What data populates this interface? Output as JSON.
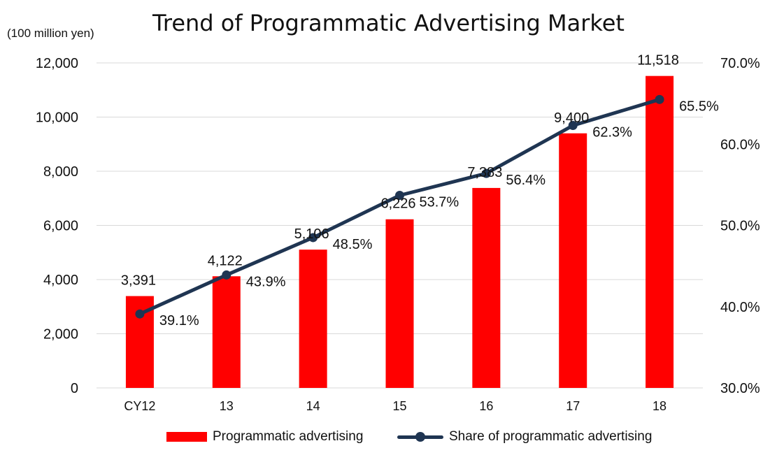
{
  "title": "Trend of Programmatic Advertising Market",
  "unit_label": "(100 million yen)",
  "colors": {
    "bar": "#ff0000",
    "line": "#1f3552",
    "grid": "#d9d9d9"
  },
  "legend": {
    "bar_label": "Programmatic advertising",
    "line_label": "Share of programmatic advertising"
  },
  "chart_data": {
    "type": "bar",
    "categories": [
      "CY12",
      "13",
      "14",
      "15",
      "16",
      "17",
      "18"
    ],
    "series": [
      {
        "name": "Programmatic advertising",
        "type": "bar",
        "axis": "left",
        "values": [
          3391,
          4122,
          5106,
          6226,
          7383,
          9400,
          11518
        ],
        "labels": [
          "3,391",
          "4,122",
          "5,106",
          "6,226",
          "7,383",
          "9,400",
          "11,518"
        ]
      },
      {
        "name": "Share of programmatic advertising",
        "type": "line",
        "axis": "right",
        "values": [
          39.1,
          43.9,
          48.5,
          53.7,
          56.4,
          62.3,
          65.5
        ],
        "labels": [
          "39.1%",
          "43.9%",
          "48.5%",
          "53.7%",
          "56.4%",
          "62.3%",
          "65.5%"
        ]
      }
    ],
    "y_left": {
      "min": 0,
      "max": 12000,
      "ticks": [
        "0",
        "2,000",
        "4,000",
        "6,000",
        "8,000",
        "10,000",
        "12,000"
      ]
    },
    "y_right": {
      "min": 30,
      "max": 70,
      "ticks": [
        "30.0%",
        "40.0%",
        "50.0%",
        "60.0%",
        "70.0%"
      ]
    },
    "grid": true,
    "legend_position": "bottom"
  }
}
